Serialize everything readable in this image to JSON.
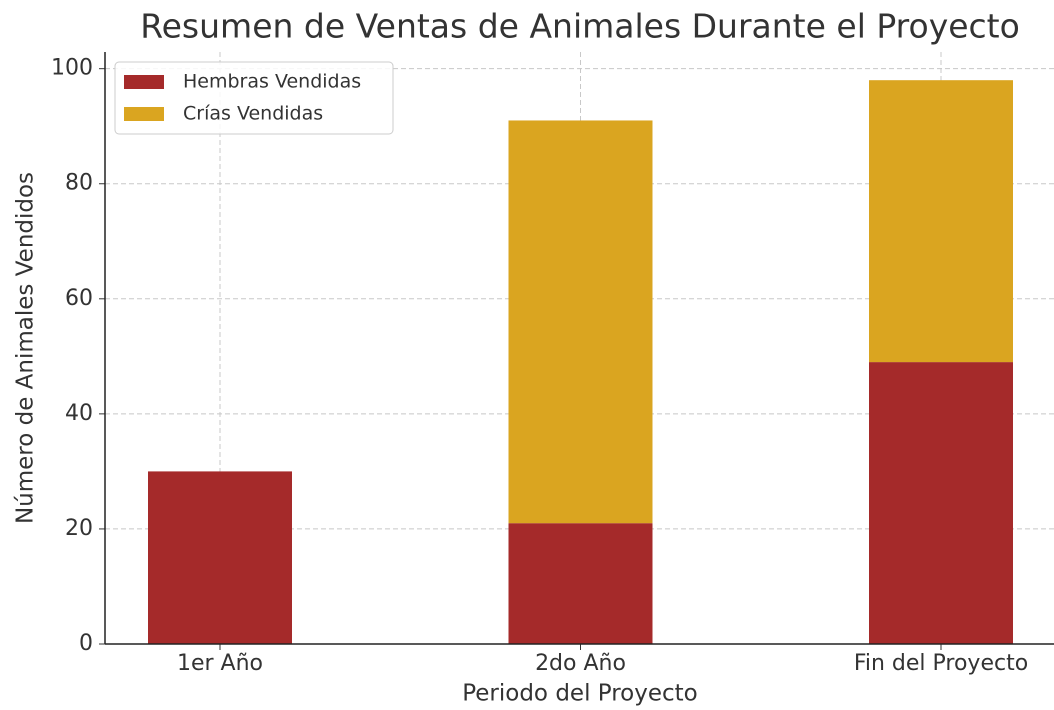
{
  "chart_data": {
    "type": "stacked_bar",
    "title": "Resumen de Ventas de Animales Durante el Proyecto",
    "xlabel": "Periodo del Proyecto",
    "ylabel": "Número de Animales Vendidos",
    "categories": [
      "1er Año",
      "2do Año",
      "Fin del Proyecto"
    ],
    "series": [
      {
        "name": "Hembras Vendidas",
        "color": "#a52a2a",
        "values": [
          30,
          21,
          49
        ]
      },
      {
        "name": "Crías Vendidas",
        "color": "#daa520",
        "values": [
          0,
          70,
          49
        ]
      }
    ],
    "ylim": [
      0,
      102.9
    ],
    "yticks": [
      0,
      20,
      40,
      60,
      80,
      100
    ],
    "grid": true,
    "legend": "upper left"
  }
}
